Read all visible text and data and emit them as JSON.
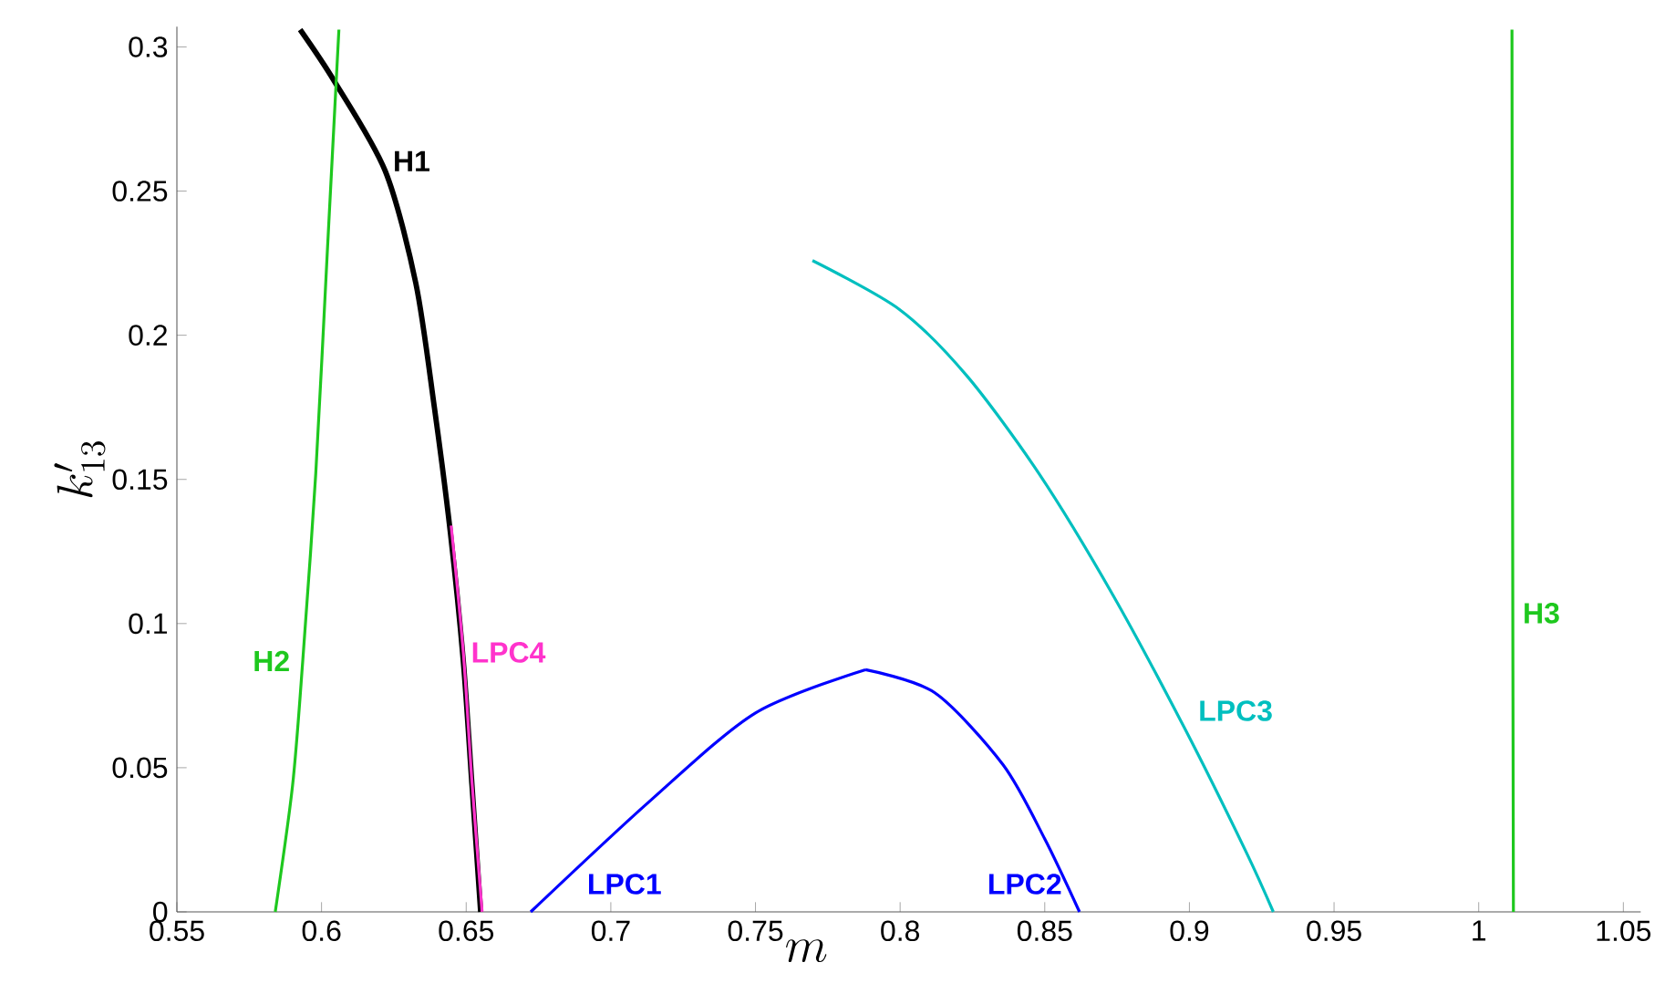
{
  "chart_data": {
    "type": "line",
    "xlabel": "m",
    "ylabel": "k'_{13}",
    "xlim": [
      0.55,
      1.056
    ],
    "ylim": [
      0,
      0.307
    ],
    "xticks": [
      0.55,
      0.6,
      0.65,
      0.7,
      0.75,
      0.8,
      0.85,
      0.9,
      0.95,
      1,
      1.05
    ],
    "yticks": [
      0,
      0.05,
      0.1,
      0.15,
      0.2,
      0.25,
      0.3
    ],
    "grid": false,
    "legend": false,
    "marker": "none",
    "line_style": "solid",
    "series": [
      {
        "name": "H1",
        "color": "#000000",
        "x": [
          0.5926,
          0.6045,
          0.622,
          0.6326,
          0.639,
          0.6446,
          0.649,
          0.652,
          0.655
        ],
        "values": [
          0.306,
          0.288,
          0.257,
          0.218,
          0.175,
          0.131,
          0.087,
          0.044,
          0.0
        ]
      },
      {
        "name": "H2",
        "color": "#1ec81e",
        "x": [
          0.606,
          0.602,
          0.598,
          0.5935,
          0.59,
          0.584
        ],
        "values": [
          0.306,
          0.229,
          0.152,
          0.087,
          0.044,
          0.0
        ]
      },
      {
        "name": "LPC4",
        "color": "#ff33cc",
        "x": [
          0.6448,
          0.649,
          0.652,
          0.6555
        ],
        "values": [
          0.134,
          0.09,
          0.045,
          0.0
        ]
      },
      {
        "name": "LPC1",
        "color": "#0000ff",
        "x": [
          0.6723,
          0.713,
          0.75,
          0.788
        ],
        "values": [
          0.0,
          0.038,
          0.069,
          0.084
        ]
      },
      {
        "name": "LPC2",
        "color": "#0000ff",
        "x": [
          0.788,
          0.812,
          0.8356,
          0.85,
          0.862
        ],
        "values": [
          0.084,
          0.076,
          0.051,
          0.0253,
          0.0
        ]
      },
      {
        "name": "LPC3",
        "color": "#00bfbf",
        "x": [
          0.7697,
          0.7997,
          0.823,
          0.848,
          0.8735,
          0.8987,
          0.9195,
          0.929
        ],
        "values": [
          0.2259,
          0.209,
          0.186,
          0.152,
          0.11,
          0.063,
          0.021,
          0.0
        ]
      },
      {
        "name": "H3",
        "color": "#1ec81e",
        "x": [
          1.0115,
          1.0117,
          1.012
        ],
        "values": [
          0.306,
          0.15,
          0.0
        ]
      }
    ]
  }
}
